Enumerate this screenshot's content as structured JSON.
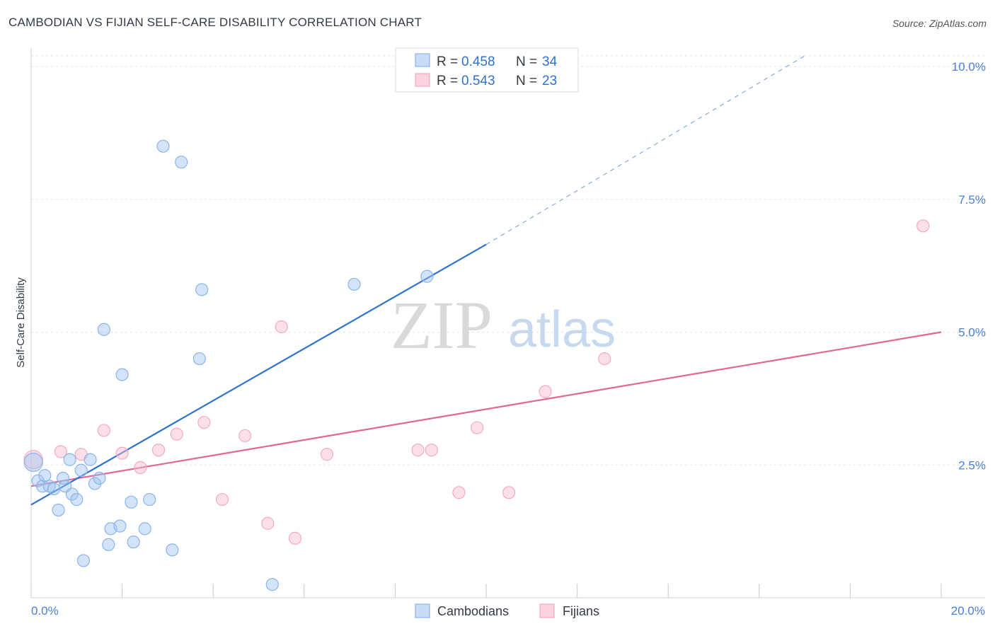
{
  "header": {
    "title": "CAMBODIAN VS FIJIAN SELF-CARE DISABILITY CORRELATION CHART",
    "source": "Source: ZipAtlas.com"
  },
  "watermark": {
    "zip": "ZIP",
    "atlas": "atlas"
  },
  "legend": {
    "rows": [
      {
        "r_label": "R = ",
        "r_value": "0.458",
        "n_label": "N = ",
        "n_value": "34",
        "color": "#8bb4ea"
      },
      {
        "r_label": "R = ",
        "r_value": "0.543",
        "n_label": "N = ",
        "n_value": "23",
        "color": "#f4a9c0"
      }
    ]
  },
  "bottom_legend": {
    "items": [
      "Cambodians",
      "Fijians"
    ]
  },
  "chart_data": {
    "type": "scatter",
    "title": "CAMBODIAN VS FIJIAN SELF-CARE DISABILITY CORRELATION CHART",
    "xlabel": "",
    "ylabel": "Self-Care Disability",
    "xlim": [
      0,
      20
    ],
    "ylim": [
      0,
      10.2
    ],
    "x_tick_labels": [
      "0.0%",
      "20.0%"
    ],
    "y_ticks": [
      2.5,
      5.0,
      7.5,
      10.0
    ],
    "y_tick_labels": [
      "2.5%",
      "5.0%",
      "7.5%",
      "10.0%"
    ],
    "grid": true,
    "legend_position": "top-center",
    "series": [
      {
        "name": "Cambodians",
        "color": "#8bb4ea",
        "line_color": "#2e72cf",
        "x": [
          0.05,
          0.15,
          0.25,
          0.3,
          0.4,
          0.5,
          0.6,
          0.7,
          0.75,
          0.85,
          0.9,
          1.0,
          1.1,
          1.15,
          1.3,
          1.4,
          1.5,
          1.6,
          1.7,
          1.75,
          1.95,
          2.0,
          2.2,
          2.25,
          2.5,
          2.6,
          2.9,
          3.1,
          3.3,
          3.7,
          3.75,
          5.3,
          7.1,
          8.7
        ],
        "y": [
          2.55,
          2.2,
          2.1,
          2.3,
          2.1,
          2.05,
          1.65,
          2.25,
          2.1,
          2.6,
          1.95,
          1.85,
          2.4,
          0.7,
          2.6,
          2.15,
          2.25,
          5.05,
          1.0,
          1.3,
          1.35,
          4.2,
          1.8,
          1.05,
          1.3,
          1.85,
          8.5,
          0.9,
          8.2,
          4.5,
          5.8,
          0.25,
          5.9,
          6.05
        ],
        "trend": {
          "x": [
            0.0,
            10.0
          ],
          "y": [
            1.75,
            6.65
          ],
          "dashed_extension_to": [
            17.0,
            10.2
          ]
        }
      },
      {
        "name": "Fijians",
        "color": "#f4a9c0",
        "line_color": "#e36592",
        "x": [
          0.05,
          0.65,
          1.1,
          1.6,
          2.0,
          2.4,
          2.8,
          3.2,
          3.8,
          4.2,
          4.7,
          5.2,
          5.5,
          5.8,
          6.5,
          8.5,
          8.8,
          9.4,
          9.8,
          10.5,
          11.3,
          12.6,
          19.6
        ],
        "y": [
          2.6,
          2.75,
          2.7,
          3.15,
          2.72,
          2.45,
          2.78,
          3.08,
          3.3,
          1.85,
          3.05,
          1.4,
          5.1,
          1.12,
          2.7,
          2.78,
          2.78,
          1.98,
          3.2,
          1.98,
          3.88,
          4.5,
          7.0
        ],
        "trend": {
          "x": [
            0.0,
            20.0
          ],
          "y": [
            2.1,
            5.0
          ]
        }
      }
    ]
  }
}
